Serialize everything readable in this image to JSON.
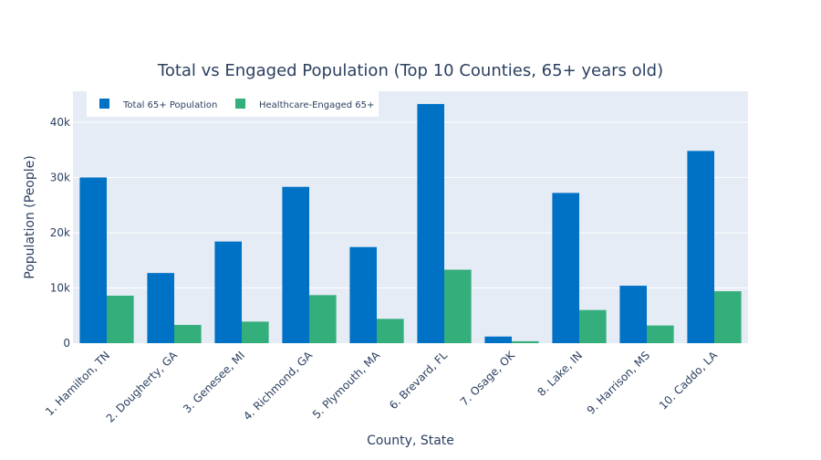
{
  "chart_data": {
    "type": "bar",
    "title": "Total vs Engaged Population (Top 10 Counties, 65+ years old)",
    "xlabel": "County, State",
    "ylabel": "Population (People)",
    "categories": [
      "1. Hamilton, TN",
      "2. Dougherty, GA",
      "3. Genesee, MI",
      "4. Richmond, GA",
      "5. Plymouth, MA",
      "6. Brevard, FL",
      "7. Osage, OK",
      "8. Lake, IN",
      "9. Harrison, MS",
      "10. Caddo, LA"
    ],
    "series": [
      {
        "name": "Total 65+ Population",
        "color": "#0072c6",
        "values": [
          30000,
          12700,
          18400,
          28300,
          17400,
          43300,
          1200,
          27200,
          10400,
          34800
        ]
      },
      {
        "name": "Healthcare-Engaged 65+",
        "color": "#34ae7a",
        "values": [
          8600,
          3300,
          3900,
          8700,
          4400,
          13300,
          350,
          6000,
          3200,
          9400
        ]
      }
    ],
    "ylim": [
      0,
      45600
    ],
    "yticks": [
      0,
      10000,
      20000,
      30000,
      40000
    ],
    "ytick_labels": [
      "0",
      "10k",
      "20k",
      "30k",
      "40k"
    ],
    "grid": true,
    "legend_position": "top-left",
    "plot_background": "#e5ecf6"
  }
}
